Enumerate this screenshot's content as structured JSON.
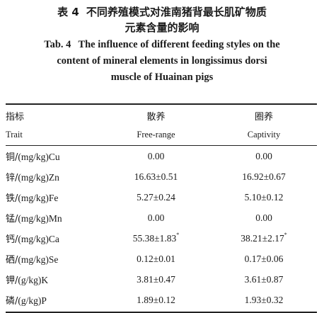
{
  "caption": {
    "cn_label": "表 4",
    "cn_line1": "不同养殖模式对淮南猪背最长肌矿物质",
    "cn_line2": "元素含量的影响",
    "en_label": "Tab. 4",
    "en_line1": "The influence of different feeding styles on the",
    "en_line2": "content of mineral elements in longissimus dorsi",
    "en_line3": "muscle of Huainan pigs"
  },
  "table": {
    "headers_cn": [
      "指标",
      "散养",
      "圈养"
    ],
    "headers_en": [
      "Trait",
      "Free-range",
      "Captivity"
    ],
    "rows": [
      {
        "trait_cn": "铜/",
        "trait_unit": "(mg/kg)Cu",
        "free_range": "0.00",
        "free_range_mark": "",
        "captivity": "0.00",
        "captivity_mark": ""
      },
      {
        "trait_cn": "锌/",
        "trait_unit": "(mg/kg)Zn",
        "free_range": "16.63±0.51",
        "free_range_mark": "",
        "captivity": "16.92±0.67",
        "captivity_mark": ""
      },
      {
        "trait_cn": "铁/",
        "trait_unit": "(mg/kg)Fe",
        "free_range": "5.27±0.24",
        "free_range_mark": "",
        "captivity": "5.10±0.12",
        "captivity_mark": ""
      },
      {
        "trait_cn": "锰/",
        "trait_unit": "(mg/kg)Mn",
        "free_range": "0.00",
        "free_range_mark": "",
        "captivity": "0.00",
        "captivity_mark": ""
      },
      {
        "trait_cn": "钙/",
        "trait_unit": "(mg/kg)Ca",
        "free_range": "55.38±1.83",
        "free_range_mark": "*",
        "captivity": "38.21±2.17",
        "captivity_mark": "*"
      },
      {
        "trait_cn": "硒/",
        "trait_unit": "(mg/kg)Se",
        "free_range": "0.12±0.01",
        "free_range_mark": "",
        "captivity": "0.17±0.06",
        "captivity_mark": ""
      },
      {
        "trait_cn": "钾/",
        "trait_unit": "(g/kg)K",
        "free_range": "3.81±0.47",
        "free_range_mark": "",
        "captivity": "3.61±0.87",
        "captivity_mark": ""
      },
      {
        "trait_cn": "磷/",
        "trait_unit": "(g/kg)P",
        "free_range": "1.89±0.12",
        "free_range_mark": "",
        "captivity": "1.93±0.32",
        "captivity_mark": ""
      }
    ]
  }
}
